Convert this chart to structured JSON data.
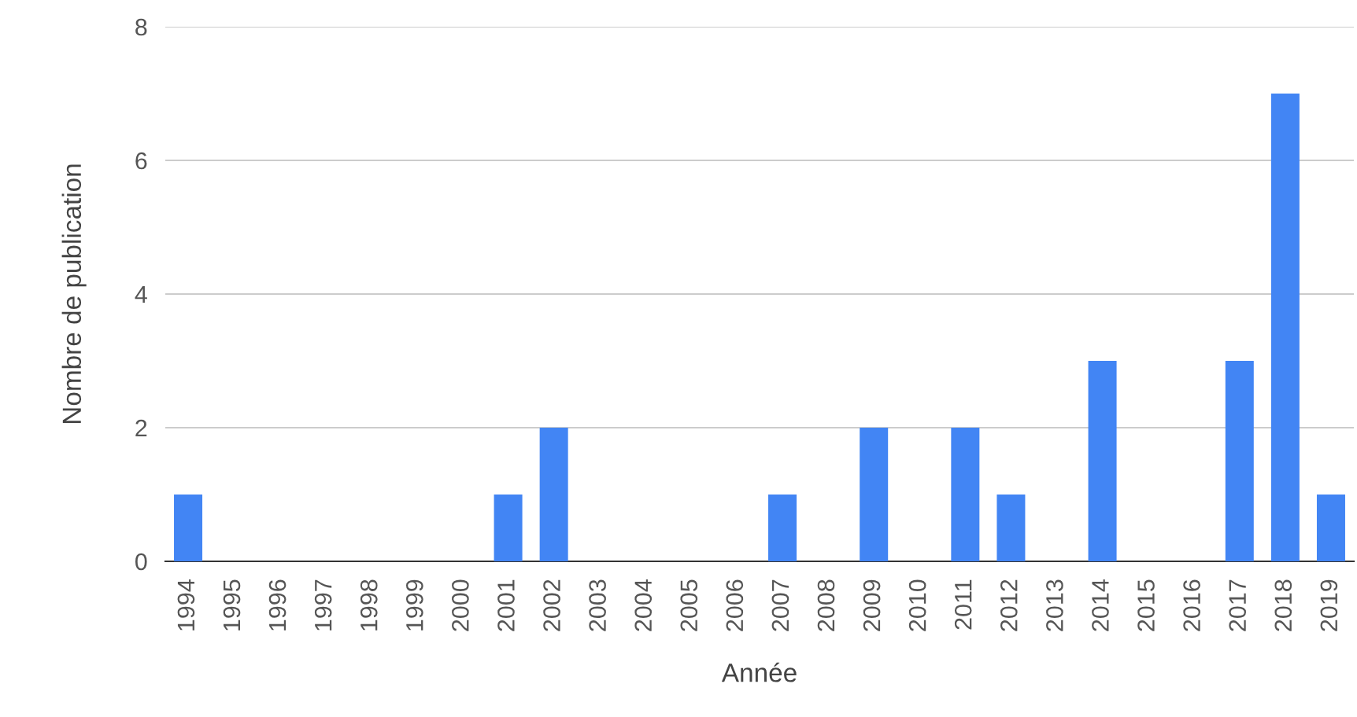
{
  "chart_data": {
    "type": "bar",
    "xlabel": "Année",
    "ylabel": "Nombre de publication",
    "categories": [
      "1994",
      "1995",
      "1996",
      "1997",
      "1998",
      "1999",
      "2000",
      "2001",
      "2002",
      "2003",
      "2004",
      "2005",
      "2006",
      "2007",
      "2008",
      "2009",
      "2010",
      "2011",
      "2012",
      "2013",
      "2014",
      "2015",
      "2016",
      "2017",
      "2018",
      "2019"
    ],
    "values": [
      1,
      0,
      0,
      0,
      0,
      0,
      0,
      1,
      2,
      0,
      0,
      0,
      0,
      1,
      0,
      2,
      0,
      2,
      1,
      0,
      3,
      0,
      0,
      3,
      7,
      1
    ],
    "color": "#4285f4",
    "ylim": [
      0,
      8
    ],
    "yticks": [
      0,
      2,
      4,
      6,
      8
    ],
    "grid": "y"
  }
}
